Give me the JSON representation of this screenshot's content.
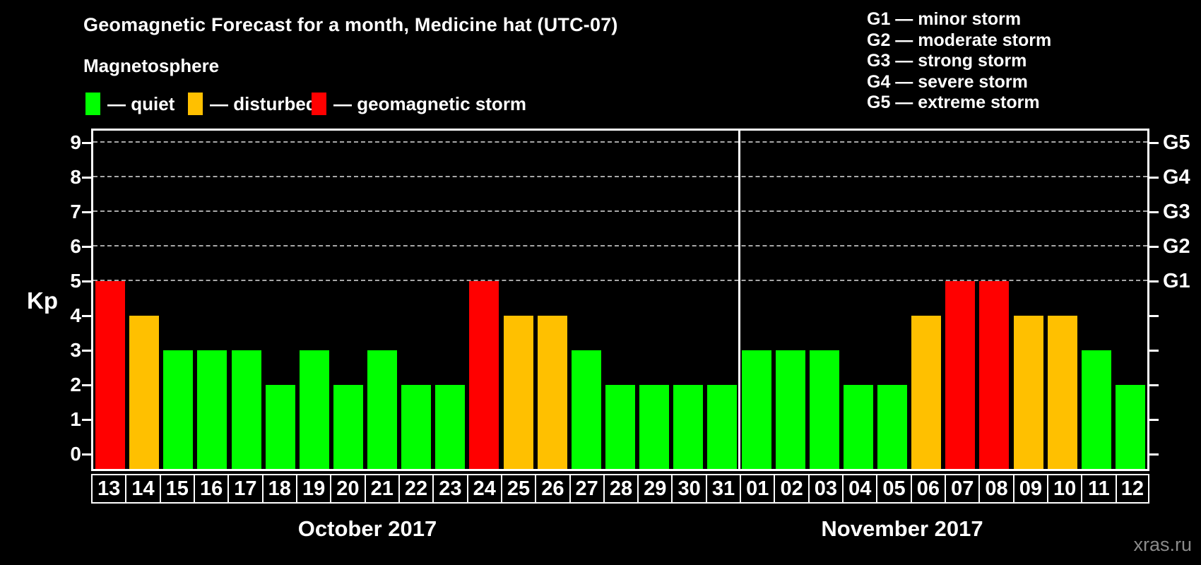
{
  "title": "Geomagnetic Forecast for a month, Medicine hat (UTC-07)",
  "subtitle": "Magnetosphere",
  "legend": {
    "items": [
      {
        "key": "quiet",
        "label": "— quiet",
        "color": "#00ff00"
      },
      {
        "key": "disturbed",
        "label": "— disturbed",
        "color": "#ffc000"
      },
      {
        "key": "storm",
        "label": "— geomagnetic storm",
        "color": "#ff0000"
      }
    ]
  },
  "g_legend": [
    "G1 — minor storm",
    "G2 — moderate storm",
    "G3 — strong storm",
    "G4 — severe storm",
    "G5 — extreme storm"
  ],
  "axis": {
    "kp_label": "Kp",
    "kp_ticks": [
      0,
      1,
      2,
      3,
      4,
      5,
      6,
      7,
      8,
      9
    ],
    "g_ticks": [
      {
        "kp": 5,
        "label": "G1"
      },
      {
        "kp": 6,
        "label": "G2"
      },
      {
        "kp": 7,
        "label": "G3"
      },
      {
        "kp": 8,
        "label": "G4"
      },
      {
        "kp": 9,
        "label": "G5"
      }
    ]
  },
  "months": [
    {
      "label": "October 2017",
      "days": 19
    },
    {
      "label": "November 2017",
      "days": 12
    }
  ],
  "watermark": "xras.ru",
  "chart_data": {
    "type": "bar",
    "ylabel": "Kp",
    "ylim": [
      0,
      9
    ],
    "grid": "dashed horizontal lines at Kp 5-9 (G1-G5)",
    "categories": [
      "13",
      "14",
      "15",
      "16",
      "17",
      "18",
      "19",
      "20",
      "21",
      "22",
      "23",
      "24",
      "25",
      "26",
      "27",
      "28",
      "29",
      "30",
      "31",
      "01",
      "02",
      "03",
      "04",
      "05",
      "06",
      "07",
      "08",
      "09",
      "10",
      "11",
      "12"
    ],
    "values": [
      5,
      4,
      3,
      3,
      3,
      2,
      3,
      2,
      3,
      2,
      2,
      5,
      4,
      4,
      3,
      2,
      2,
      2,
      2,
      3,
      3,
      3,
      2,
      2,
      4,
      5,
      5,
      4,
      4,
      3,
      2
    ],
    "statuses": [
      "storm",
      "disturbed",
      "quiet",
      "quiet",
      "quiet",
      "quiet",
      "quiet",
      "quiet",
      "quiet",
      "quiet",
      "quiet",
      "storm",
      "disturbed",
      "disturbed",
      "quiet",
      "quiet",
      "quiet",
      "quiet",
      "quiet",
      "quiet",
      "quiet",
      "quiet",
      "quiet",
      "quiet",
      "disturbed",
      "storm",
      "storm",
      "disturbed",
      "disturbed",
      "quiet",
      "quiet"
    ],
    "colors": {
      "quiet": "#00ff00",
      "disturbed": "#ffc000",
      "storm": "#ff0000"
    }
  }
}
